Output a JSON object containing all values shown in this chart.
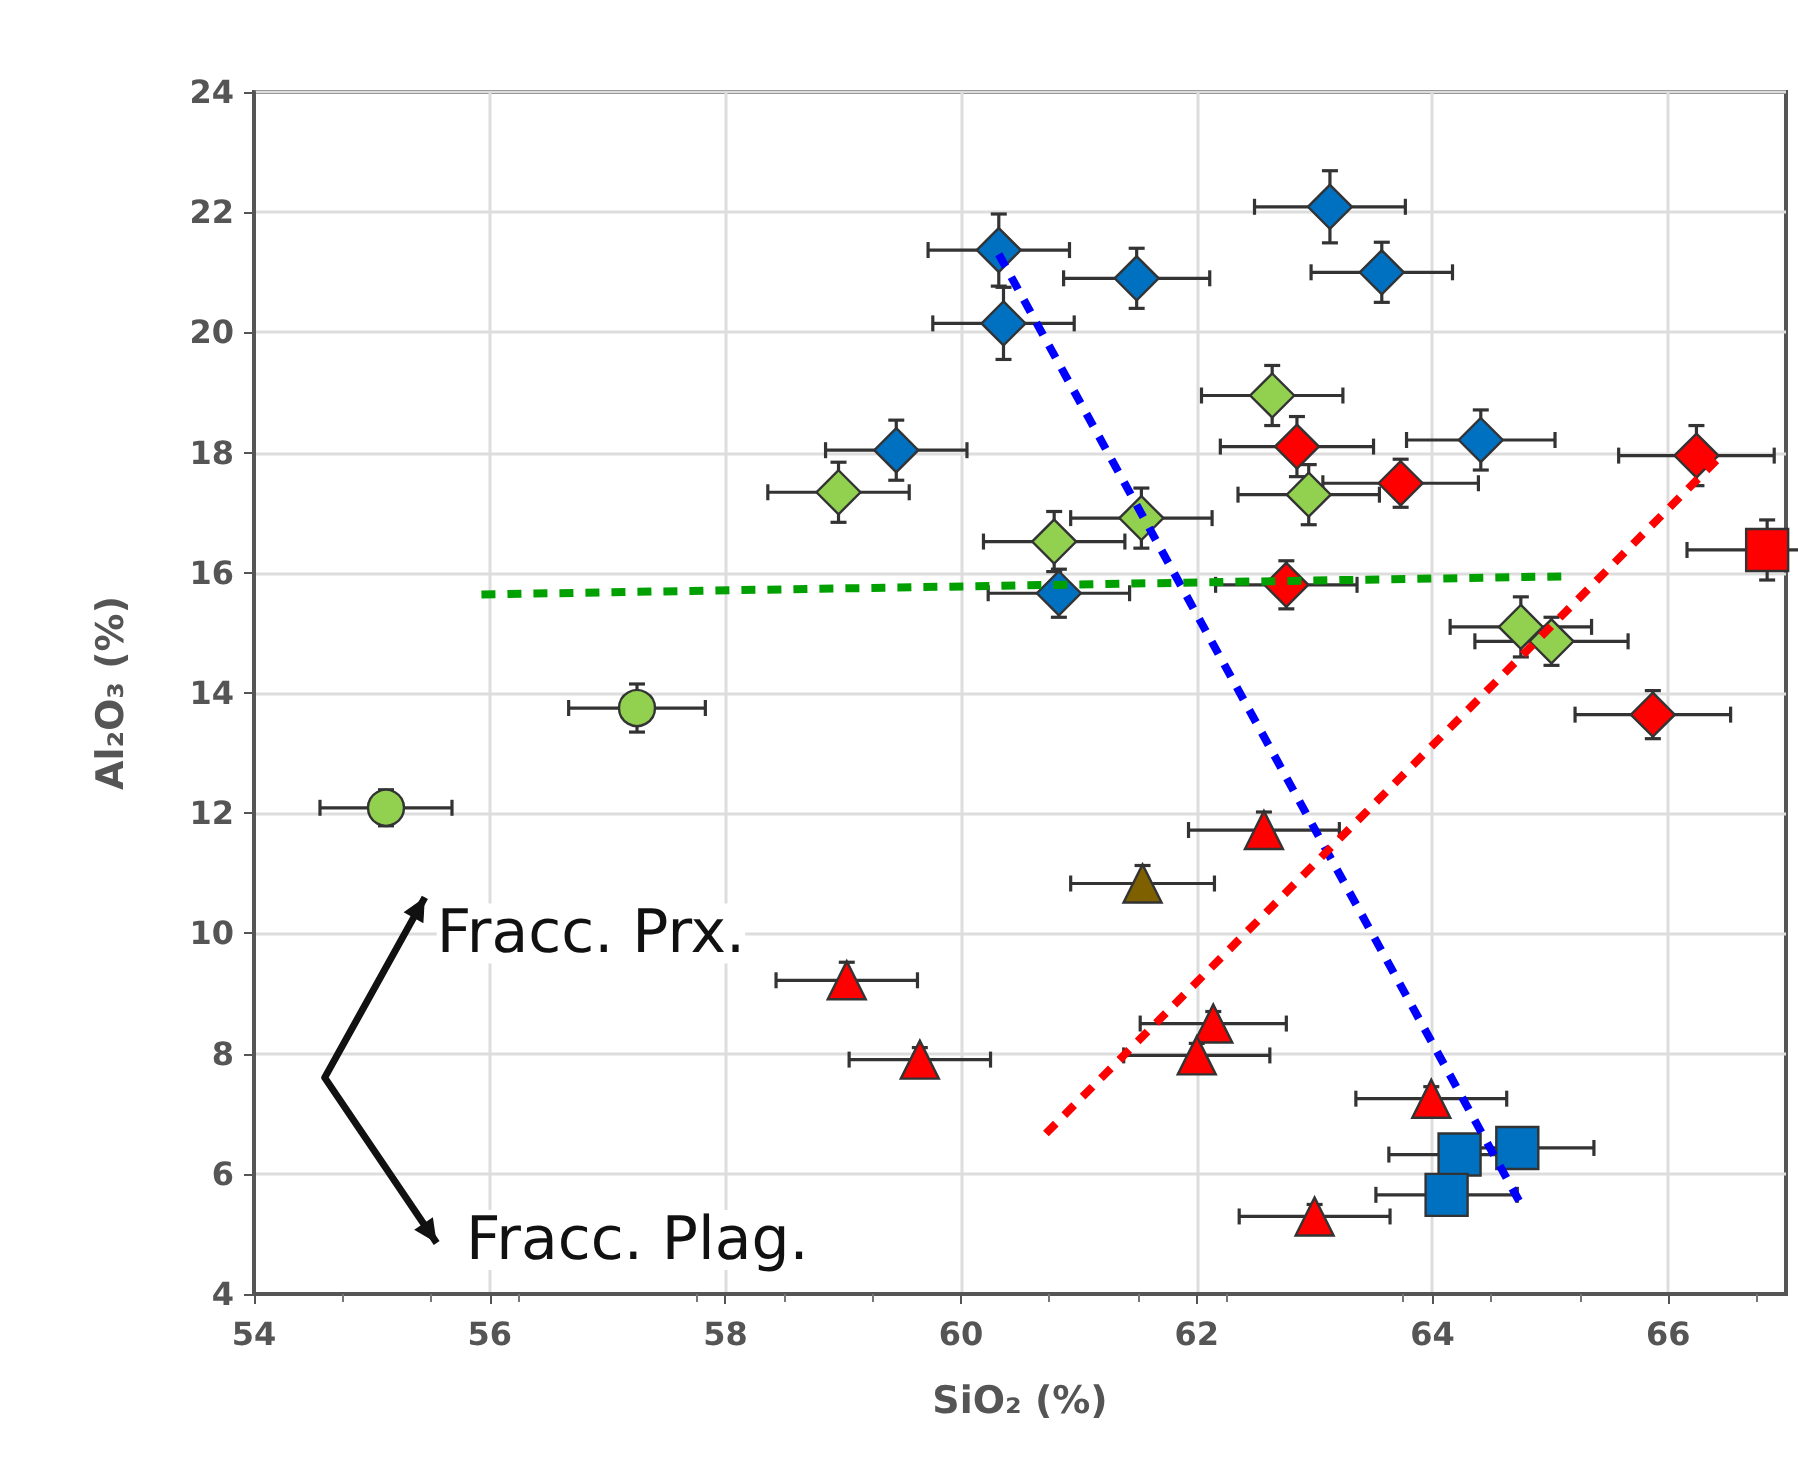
{
  "chart_data": {
    "type": "scatter",
    "xlabel": "SiO₂ (%)",
    "ylabel": "Al₂O₃ (%)",
    "xlim": [
      54,
      67
    ],
    "xticks": [
      54,
      56,
      58,
      60,
      62,
      64,
      66
    ],
    "ylim": [
      4,
      24
    ],
    "yticks": [
      4,
      6,
      8,
      10,
      12,
      14,
      16,
      18,
      20,
      22,
      24
    ],
    "grid": true,
    "annotations": [
      "Fracc. Prx.",
      "Fracc. Plag."
    ],
    "series": [
      {
        "marker": "diamond",
        "color": "#0070c0",
        "x": [
          60.32,
          60.36,
          59.45,
          61.49,
          63.13,
          63.57,
          64.41,
          60.83
        ],
        "values": [
          21.37,
          20.15,
          18.04,
          20.9,
          22.09,
          21.0,
          18.21,
          15.66
        ],
        "xerrors": [
          0.6,
          0.6,
          0.6,
          0.62,
          0.64,
          0.6,
          0.63,
          0.6
        ],
        "errors": [
          0.6,
          0.6,
          0.5,
          0.5,
          0.6,
          0.5,
          0.5,
          0.4
        ]
      },
      {
        "marker": "diamond",
        "color": "#92d050",
        "x": [
          58.96,
          62.64,
          62.95,
          61.53,
          60.79,
          64.75,
          65.01
        ],
        "values": [
          17.34,
          18.95,
          17.3,
          16.91,
          16.52,
          15.1,
          14.86
        ],
        "xerrors": [
          0.6,
          0.6,
          0.6,
          0.6,
          0.6,
          0.6,
          0.65
        ],
        "errors": [
          0.5,
          0.5,
          0.5,
          0.5,
          0.5,
          0.5,
          0.4
        ]
      },
      {
        "marker": "circle",
        "color": "#92d050",
        "x": [
          57.25,
          55.12
        ],
        "values": [
          13.75,
          12.09
        ],
        "xerrors": [
          0.58,
          0.56
        ],
        "errors": [
          0.4,
          0.3
        ]
      },
      {
        "marker": "diamond",
        "color": "#ff0000",
        "x": [
          62.85,
          66.24,
          63.73,
          62.76,
          65.87
        ],
        "values": [
          18.1,
          17.95,
          17.49,
          15.8,
          13.64
        ],
        "xerrors": [
          0.65,
          0.66,
          0.66,
          0.6,
          0.66
        ],
        "errors": [
          0.5,
          0.5,
          0.4,
          0.4,
          0.4
        ]
      },
      {
        "marker": "square",
        "color": "#ff0000",
        "x": [
          66.84
        ],
        "values": [
          16.38
        ],
        "xerrors": [
          0.68
        ],
        "errors": [
          0.5
        ]
      },
      {
        "marker": "triangle",
        "color": "#ff0000",
        "x": [
          59.03,
          59.65,
          62.57,
          62.14,
          62.0,
          63.99,
          63.0
        ],
        "values": [
          9.22,
          7.9,
          11.72,
          8.5,
          7.97,
          7.25,
          5.29
        ],
        "xerrors": [
          0.6,
          0.6,
          0.64,
          0.62,
          0.62,
          0.64,
          0.64
        ],
        "errors": [
          0.3,
          0.2,
          0.3,
          0.2,
          0.2,
          0.2,
          0.2
        ]
      },
      {
        "marker": "triangle",
        "color": "#7f6000",
        "x": [
          61.54
        ],
        "values": [
          10.83
        ],
        "xerrors": [
          0.61
        ],
        "errors": [
          0.3
        ]
      },
      {
        "marker": "square",
        "color": "#0070c0",
        "x": [
          64.23,
          64.72,
          64.12
        ],
        "values": [
          6.32,
          6.43,
          5.65
        ],
        "xerrors": [
          0.6,
          0.65,
          0.6
        ]
      },
      {
        "type": "line",
        "marker": "none",
        "line_style": "dashed",
        "color": "#0000ff",
        "x": [
          60.32,
          64.76
        ],
        "values": [
          21.3,
          5.46
        ]
      },
      {
        "type": "line",
        "marker": "none",
        "line_style": "dashed",
        "color": "#00a000",
        "x": [
          55.93,
          65.1
        ],
        "values": [
          15.64,
          15.94
        ]
      },
      {
        "type": "line",
        "marker": "none",
        "line_style": "dashed",
        "color": "#ff0000",
        "x": [
          60.72,
          66.47
        ],
        "values": [
          6.67,
          17.99
        ]
      }
    ]
  }
}
